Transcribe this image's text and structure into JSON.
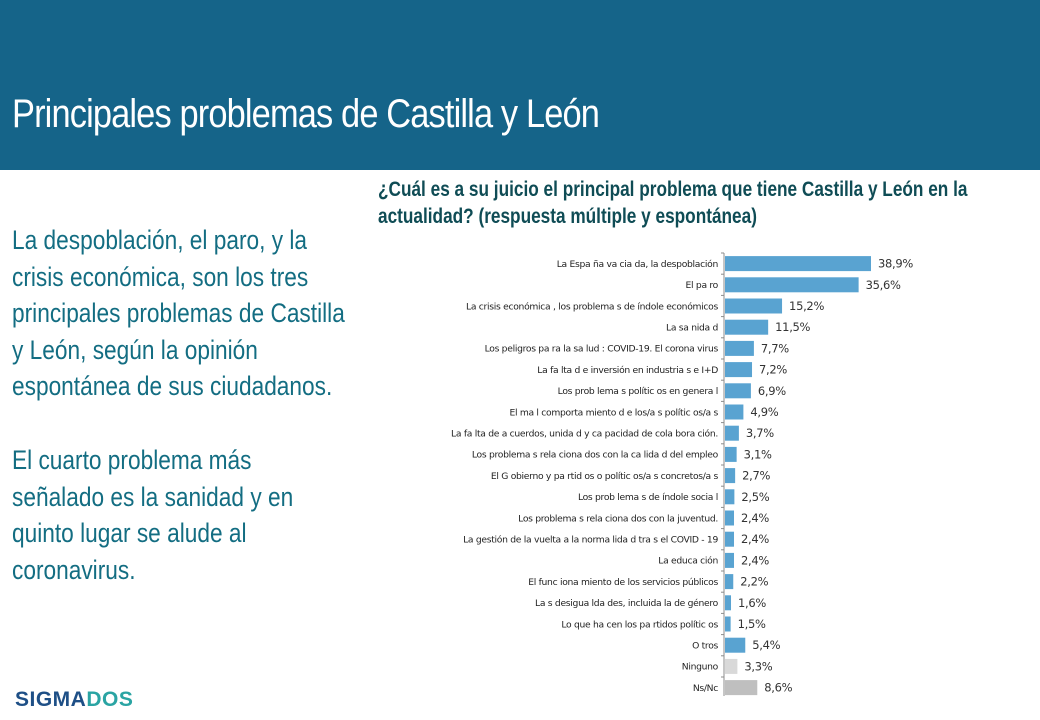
{
  "header": {
    "title": "Principales problemas de Castilla y León"
  },
  "summary": {
    "paragraph1": "La despoblación, el paro, y la crisis económica, son los tres principales problemas de Castilla y León, según la opinión espontánea de sus ciudadanos.",
    "paragraph2": "El cuarto problema más señalado es la sanidad y en quinto lugar se alude al coronavirus."
  },
  "logo": {
    "part1": "SIGMA",
    "part2": "DOS"
  },
  "colors": {
    "header_bg": "#156489",
    "bar_main": "#59a3d1",
    "bar_ninguno": "#d9d9d9",
    "bar_nsnc": "#bfbfbf",
    "summary_text": "#136d82",
    "question_text": "#0f4c55"
  },
  "chart_data": {
    "type": "bar",
    "orientation": "horizontal",
    "title": "¿Cuál es a su juicio el principal problema que tiene Castilla y León en la actualidad? (respuesta múltiple y espontánea)",
    "xlabel": "",
    "ylabel": "",
    "xlim": [
      0,
      40
    ],
    "grid": false,
    "legend": "none",
    "categories": [
      "La Espa ña va cia da, la despoblación",
      "El pa ro",
      "La crisis económica , los problema s de índole económicos",
      "La sa nida d",
      "Los peligros pa ra la sa lud : COVID-19. El corona virus",
      "La fa lta d e inversión en industria s e I+D",
      "Los prob lema s polític os en genera l",
      "El ma l comporta miento d e los/a s polític os/a s",
      "La fa lta de a cuerdos, unida d y ca pacidad de cola bora ción.",
      "Los problema s rela ciona dos con la ca lida d del empleo",
      "El G obierno y pa rtid os o polític os/a s concretos/a s",
      "Los prob lema s de índole socia l",
      "Los problema s rela ciona dos con la juventud.",
      "La gestión de la vuelta a la norma lida d tra s el COVID - 19",
      "La educa ción",
      "El func iona miento de los servicios públicos",
      "La s desigua lda des, incluida la de género",
      "Lo que ha cen los pa rtidos polític os",
      "O tros",
      "Ninguno",
      "Ns/Nc"
    ],
    "values": [
      38.9,
      35.6,
      15.2,
      11.5,
      7.7,
      7.2,
      6.9,
      4.9,
      3.7,
      3.1,
      2.7,
      2.5,
      2.4,
      2.4,
      2.4,
      2.2,
      1.6,
      1.5,
      5.4,
      3.3,
      8.6
    ],
    "value_labels": [
      "38,9%",
      "35,6%",
      "15,2%",
      "11,5%",
      "7,7%",
      "7,2%",
      "6,9%",
      "4,9%",
      "3,7%",
      "3,1%",
      "2,7%",
      "2,5%",
      "2,4%",
      "2,4%",
      "2,4%",
      "2,2%",
      "1,6%",
      "1,5%",
      "5,4%",
      "3,3%",
      "8,6%"
    ],
    "bar_color_keys": [
      "bar_main",
      "bar_main",
      "bar_main",
      "bar_main",
      "bar_main",
      "bar_main",
      "bar_main",
      "bar_main",
      "bar_main",
      "bar_main",
      "bar_main",
      "bar_main",
      "bar_main",
      "bar_main",
      "bar_main",
      "bar_main",
      "bar_main",
      "bar_main",
      "bar_main",
      "bar_ninguno",
      "bar_nsnc"
    ]
  }
}
